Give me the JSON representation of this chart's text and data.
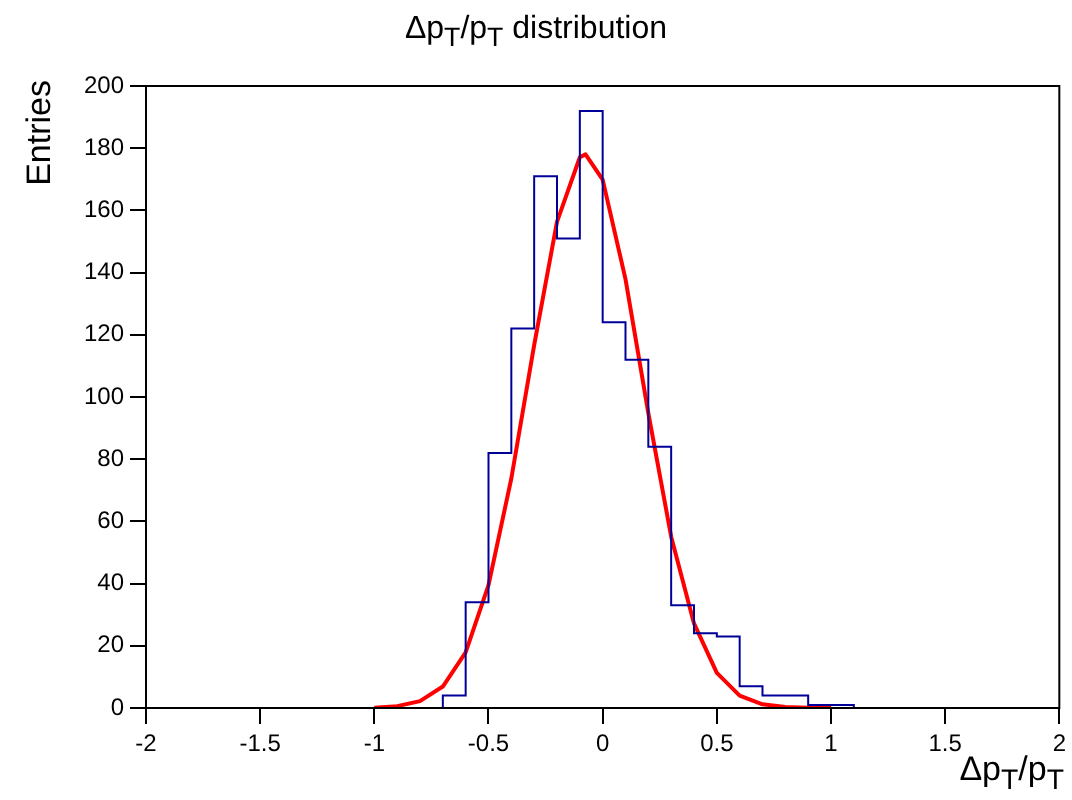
{
  "chart_data": {
    "type": "histogram",
    "title": "Δp$_{T}$/p$_{T}$ distribution",
    "xlabel": "Δp$_{T}$/p$_{T}$",
    "ylabel": "Entries",
    "color": "#000099",
    "bins": [
      -2,
      -1.9,
      -1.8,
      -1.7,
      -1.6,
      -1.5,
      -1.4,
      -1.3,
      -1.2,
      -1.1,
      -1,
      -0.9,
      -0.8,
      -0.7,
      -0.6,
      -0.5,
      -0.4,
      -0.3,
      -0.2,
      -0.1,
      0,
      0.1,
      0.2,
      0.3,
      0.4,
      0.5,
      0.6,
      0.7,
      0.8,
      0.9,
      1,
      1.1,
      1.2,
      1.3,
      1.4,
      1.5,
      1.6,
      1.7,
      1.8,
      1.9,
      2
    ],
    "values": [
      0,
      0,
      0,
      0,
      0,
      0,
      0,
      0,
      0,
      0,
      0,
      0,
      0,
      4,
      34,
      82,
      122,
      171,
      151,
      192,
      124,
      112,
      84,
      33,
      24,
      23,
      7,
      4,
      4,
      1,
      1,
      0,
      0,
      0,
      0,
      0,
      0,
      0,
      0,
      0
    ],
    "series": [
      {
        "type": "line",
        "color": "#ff0000",
        "x": [
          -1,
          -0.9,
          -0.8,
          -0.7,
          -0.6,
          -0.5,
          -0.4,
          -0.3,
          -0.2,
          -0.1,
          -0.075,
          0,
          0.1,
          0.2,
          0.3,
          0.4,
          0.5,
          0.6,
          0.7,
          0.8,
          0.9,
          1
        ],
        "values": [
          0.1,
          0.6,
          2.2,
          6.9,
          17.9,
          39.5,
          73.8,
          116.7,
          156.3,
          177.1,
          178,
          169.9,
          137.9,
          94.8,
          55.1,
          27.2,
          11.3,
          4,
          1.2,
          0.3,
          0.1,
          0
        ]
      }
    ],
    "xlim": [
      -2,
      2
    ],
    "xticks": [
      -2,
      -1.5,
      -1,
      -0.5,
      0,
      0.5,
      1,
      1.5,
      2
    ],
    "ylim": [
      0,
      200
    ],
    "yticks": [
      0,
      20,
      40,
      60,
      80,
      100,
      120,
      140,
      160,
      180,
      200
    ],
    "grid": false,
    "legend": false
  }
}
